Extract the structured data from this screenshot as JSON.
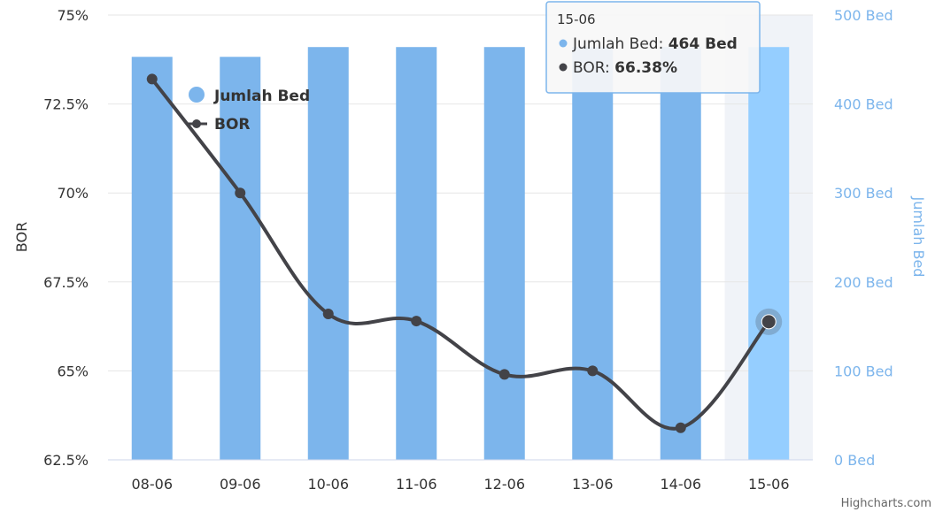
{
  "chart_data": {
    "type": "bar",
    "categories": [
      "08-06",
      "09-06",
      "10-06",
      "11-06",
      "12-06",
      "13-06",
      "14-06",
      "15-06"
    ],
    "series": [
      {
        "name": "Jumlah Bed",
        "type": "bar",
        "axis": "right",
        "values": [
          453,
          453,
          464,
          464,
          464,
          464,
          464,
          464
        ],
        "color": "#7cb5ec"
      },
      {
        "name": "BOR",
        "type": "line",
        "axis": "left",
        "values": [
          73.2,
          70.0,
          66.6,
          66.4,
          64.9,
          65.0,
          63.4,
          66.38
        ],
        "color": "#434348"
      }
    ],
    "left_axis": {
      "title": "BOR",
      "ticks": [
        "62.5%",
        "65%",
        "67.5%",
        "70%",
        "72.5%",
        "75%"
      ],
      "range": [
        62.5,
        75
      ]
    },
    "right_axis": {
      "title": "Jumlah Bed",
      "ticks": [
        "0 Bed",
        "100 Bed",
        "200 Bed",
        "300 Bed",
        "400 Bed",
        "500 Bed"
      ],
      "range": [
        0,
        500
      ]
    },
    "grid": true,
    "legend": {
      "placement": "top-left",
      "items": [
        "Jumlah Bed",
        "BOR"
      ]
    },
    "highlighted_category": "15-06"
  },
  "tooltip": {
    "header": "15-06",
    "bed_label": "Jumlah Bed: ",
    "bed_value": "464 Bed",
    "bor_label": "BOR: ",
    "bor_value": "66.38%"
  },
  "credits": "Highcharts.com",
  "colors": {
    "bar": "#7cb5ec",
    "bar_hover": "#95ceff",
    "line": "#434348",
    "grid": "#e6e6e6",
    "hover_band": "#f0f3f8",
    "tooltip_border": "#7cb5ec"
  }
}
